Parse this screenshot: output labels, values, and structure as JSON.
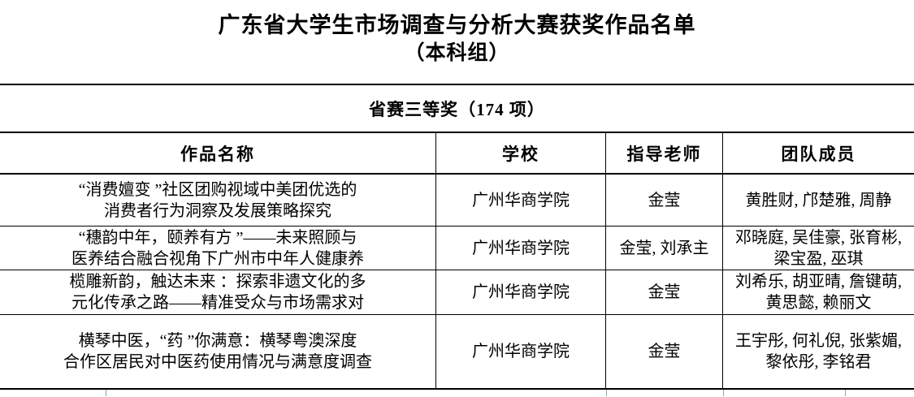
{
  "page": {
    "background_color": "#ffffff",
    "text_color": "#000000",
    "border_color": "#000000"
  },
  "title": {
    "line1": "广东省大学生市场调查与分析大赛获奖作品名单",
    "line2": "（本科组）"
  },
  "section_header": "省赛三等奖（174 项）",
  "table": {
    "columns": [
      "作品名称",
      "学校",
      "指导老师",
      "团队成员"
    ],
    "rows": [
      {
        "work_lines": [
          "“消费嬗变 ”社区团购视域中美团优选的",
          "消费者行为洞察及发展策略探究"
        ],
        "school": "广州华商学院",
        "advisor": "金莹",
        "member_lines": [
          "黄胜财, 邝楚雅, 周静"
        ]
      },
      {
        "work_lines": [
          "“穗韵中年，颐养有方 ”——未来照顾与",
          "医养结合融合视角下广州市中年人健康养"
        ],
        "school": "广州华商学院",
        "advisor": "金莹, 刘承主",
        "member_lines": [
          "邓晓庭, 吴佳豪, 张育彬,",
          "梁宝盈, 巫琪"
        ]
      },
      {
        "work_lines": [
          "榄雕新韵，触达未来 ：探索非遗文化的多",
          "元化传承之路——精准受众与市场需求对"
        ],
        "school": "广州华商学院",
        "advisor": "金莹",
        "member_lines": [
          "刘希乐, 胡亚晴, 詹键萌,",
          "黄思懿, 赖丽文"
        ]
      },
      {
        "work_lines": [
          "横琴中医，“药 ”你满意：横琴粤澳深度",
          "合作区居民对中医药使用情况与满意度调查"
        ],
        "school": "广州华商学院",
        "advisor": "金莹",
        "member_lines": [
          "王宇彤, 何礼倪, 张紫媚,",
          "黎依彤, 李铭君"
        ]
      }
    ]
  }
}
